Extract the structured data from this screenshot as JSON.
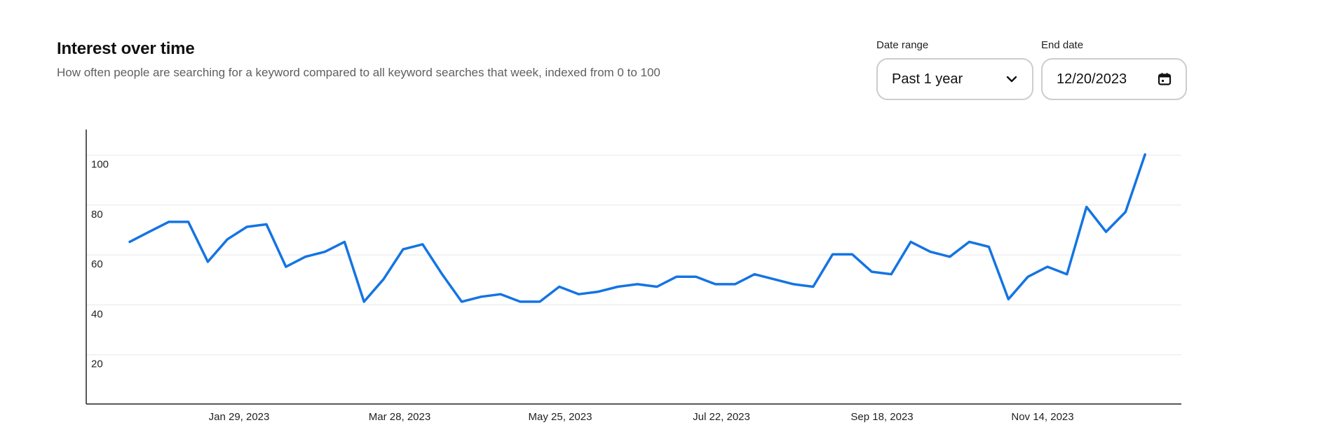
{
  "header": {
    "title": "Interest over time",
    "subtitle": "How often people are searching for a keyword compared to all keyword searches that week, indexed from 0 to 100"
  },
  "controls": {
    "date_range": {
      "label": "Date range",
      "value": "Past 1 year",
      "icon": "chevron-down-icon"
    },
    "end_date": {
      "label": "End date",
      "value": "12/20/2023",
      "icon": "calendar-icon"
    }
  },
  "colors": {
    "line": "#1474e3",
    "grid": "#e8e8e8",
    "axis": "#222222"
  },
  "chart_data": {
    "type": "line",
    "title": "Interest over time",
    "x_tick_labels": [
      "Jan 29, 2023",
      "Mar 28, 2023",
      "May 25, 2023",
      "Jul 22, 2023",
      "Sep 18, 2023",
      "Nov 14, 2023"
    ],
    "y_ticks": [
      20,
      40,
      60,
      80,
      100
    ],
    "ylim": [
      0,
      110
    ],
    "grid": "horizontal",
    "series": [
      {
        "values": [
          65,
          69,
          73,
          73,
          57,
          66,
          71,
          72,
          55,
          59,
          61,
          65,
          41,
          50,
          62,
          64,
          52,
          41,
          43,
          44,
          41,
          41,
          47,
          44,
          45,
          47,
          48,
          47,
          51,
          51,
          48,
          48,
          52,
          50,
          48,
          47,
          60,
          60,
          53,
          52,
          65,
          61,
          59,
          65,
          63,
          42,
          51,
          55,
          52,
          79,
          69,
          77,
          100
        ]
      }
    ]
  }
}
